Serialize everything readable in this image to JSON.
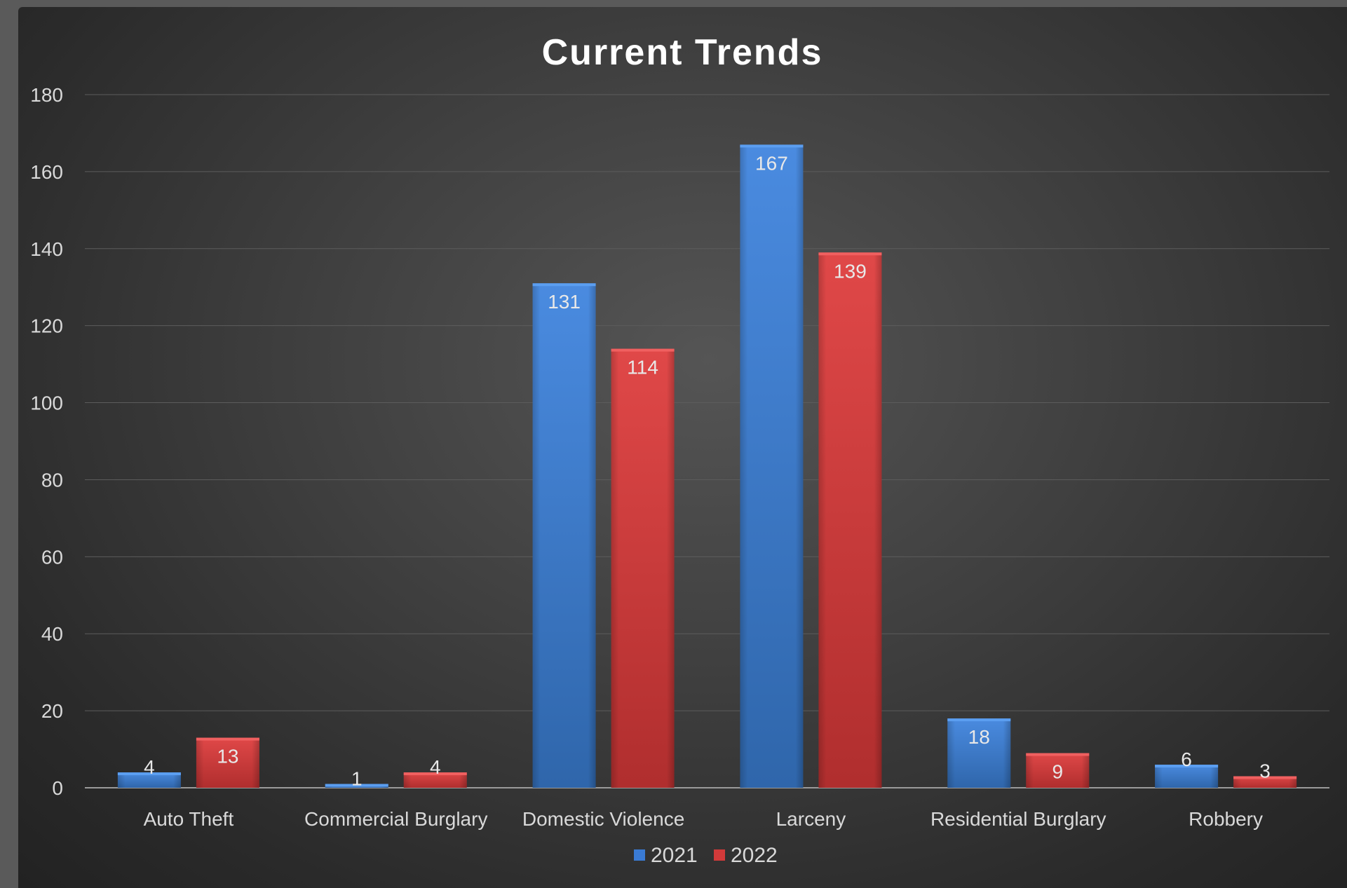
{
  "chart_data": {
    "type": "bar",
    "title": "Current Trends",
    "xlabel": "",
    "ylabel": "",
    "categories": [
      "Auto Theft",
      "Commercial Burglary",
      "Domestic Violence",
      "Larceny",
      "Residential Burglary",
      "Robbery"
    ],
    "series": [
      {
        "name": "2021",
        "values": [
          4,
          1,
          131,
          167,
          18,
          6
        ],
        "color": "#3a7bd5"
      },
      {
        "name": "2022",
        "values": [
          13,
          4,
          114,
          139,
          9,
          3
        ],
        "color": "#d23a3a"
      }
    ],
    "ylim": [
      0,
      180
    ],
    "yticks": [
      0,
      20,
      40,
      60,
      80,
      100,
      120,
      140,
      160,
      180
    ],
    "grid": true,
    "legend": "bottom",
    "data_labels": true
  }
}
